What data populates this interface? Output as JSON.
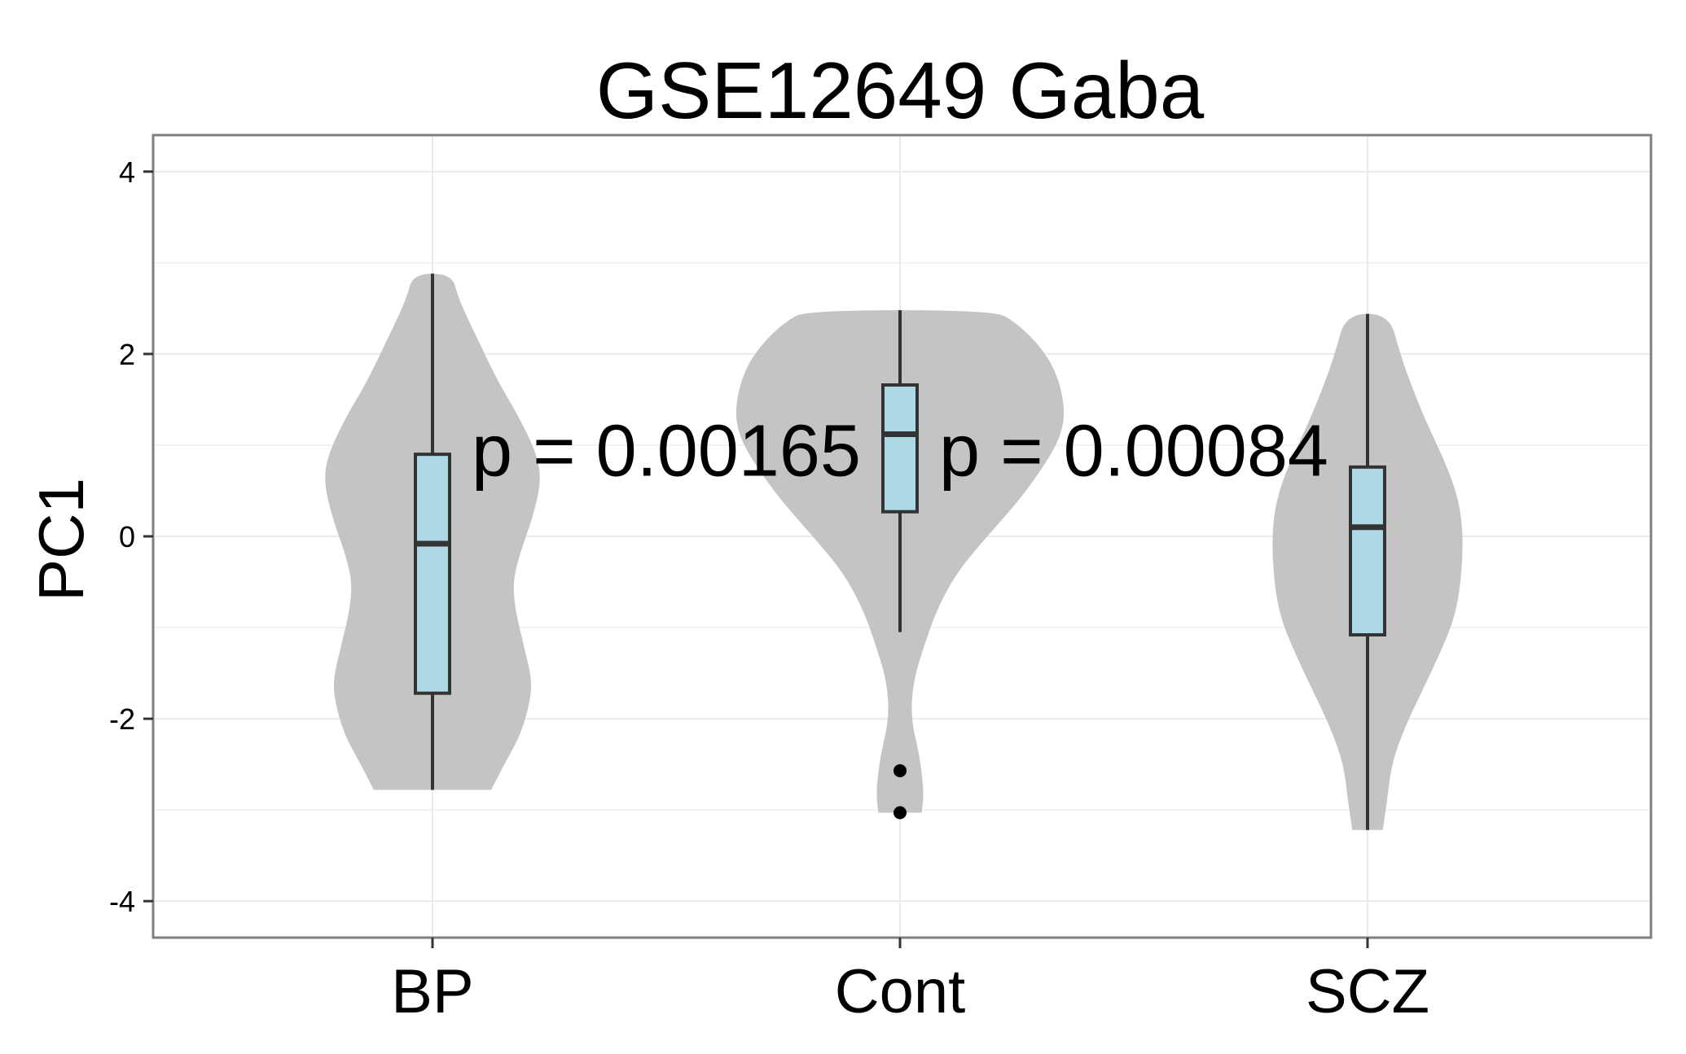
{
  "chart_data": {
    "type": "violin",
    "title": "GSE12649 Gaba",
    "xlabel": "",
    "ylabel": "PC1",
    "categories": [
      "BP",
      "Cont",
      "SCZ"
    ],
    "ylim": [
      -4.4,
      4.4
    ],
    "yticks": [
      -4,
      -2,
      0,
      2,
      4
    ],
    "ytick_labels": [
      "-4",
      "-2",
      "0",
      "2",
      "4"
    ],
    "grid": true,
    "colors": {
      "violin_fill": "#c4c4c4",
      "box_fill": "#add8e6",
      "box_stroke": "#333333",
      "grid": "#ebebeb",
      "panel_border": "#7f7f7f"
    },
    "groups": [
      {
        "name": "BP",
        "min": -2.78,
        "q1": -1.72,
        "median": -0.08,
        "q3": 0.9,
        "max": 2.88,
        "outliers": [],
        "violin_profile": [
          {
            "y": -2.78,
            "hw": 0.27
          },
          {
            "y": -2.5,
            "hw": 0.33
          },
          {
            "y": -2.2,
            "hw": 0.4
          },
          {
            "y": -1.9,
            "hw": 0.44
          },
          {
            "y": -1.6,
            "hw": 0.46
          },
          {
            "y": -1.2,
            "hw": 0.42
          },
          {
            "y": -0.8,
            "hw": 0.38
          },
          {
            "y": -0.5,
            "hw": 0.37
          },
          {
            "y": -0.2,
            "hw": 0.4
          },
          {
            "y": 0.2,
            "hw": 0.46
          },
          {
            "y": 0.6,
            "hw": 0.5
          },
          {
            "y": 0.9,
            "hw": 0.48
          },
          {
            "y": 1.3,
            "hw": 0.4
          },
          {
            "y": 1.7,
            "hw": 0.3
          },
          {
            "y": 2.2,
            "hw": 0.2
          },
          {
            "y": 2.6,
            "hw": 0.12
          },
          {
            "y": 2.88,
            "hw": 0.09
          }
        ]
      },
      {
        "name": "Cont",
        "min": -1.05,
        "q1": 0.27,
        "median": 1.12,
        "q3": 1.66,
        "max": 2.48,
        "outliers": [
          -2.57,
          -3.03
        ],
        "violin_profile": [
          {
            "y": -3.03,
            "hw": 0.1
          },
          {
            "y": -2.8,
            "hw": 0.11
          },
          {
            "y": -2.4,
            "hw": 0.09
          },
          {
            "y": -2.0,
            "hw": 0.05
          },
          {
            "y": -1.6,
            "hw": 0.06
          },
          {
            "y": -1.2,
            "hw": 0.11
          },
          {
            "y": -0.8,
            "hw": 0.17
          },
          {
            "y": -0.4,
            "hw": 0.26
          },
          {
            "y": 0.0,
            "hw": 0.4
          },
          {
            "y": 0.4,
            "hw": 0.55
          },
          {
            "y": 0.8,
            "hw": 0.67
          },
          {
            "y": 1.1,
            "hw": 0.74
          },
          {
            "y": 1.4,
            "hw": 0.76
          },
          {
            "y": 1.8,
            "hw": 0.72
          },
          {
            "y": 2.1,
            "hw": 0.64
          },
          {
            "y": 2.35,
            "hw": 0.53
          },
          {
            "y": 2.48,
            "hw": 0.43
          }
        ]
      },
      {
        "name": "SCZ",
        "min": -3.22,
        "q1": -1.08,
        "median": 0.1,
        "q3": 0.76,
        "max": 2.44,
        "outliers": [],
        "violin_profile": [
          {
            "y": -3.22,
            "hw": 0.07
          },
          {
            "y": -2.9,
            "hw": 0.09
          },
          {
            "y": -2.5,
            "hw": 0.11
          },
          {
            "y": -2.1,
            "hw": 0.17
          },
          {
            "y": -1.7,
            "hw": 0.25
          },
          {
            "y": -1.3,
            "hw": 0.33
          },
          {
            "y": -0.9,
            "hw": 0.4
          },
          {
            "y": -0.5,
            "hw": 0.43
          },
          {
            "y": 0.0,
            "hw": 0.44
          },
          {
            "y": 0.4,
            "hw": 0.42
          },
          {
            "y": 0.8,
            "hw": 0.36
          },
          {
            "y": 1.2,
            "hw": 0.28
          },
          {
            "y": 1.6,
            "hw": 0.21
          },
          {
            "y": 2.0,
            "hw": 0.15
          },
          {
            "y": 2.44,
            "hw": 0.1
          }
        ]
      }
    ],
    "annotations": [
      {
        "text": "p = 0.00165",
        "x_between": [
          0,
          1
        ],
        "y": 0.95
      },
      {
        "text": "p = 0.00084",
        "x_between": [
          1,
          2
        ],
        "y": 0.95
      }
    ]
  }
}
